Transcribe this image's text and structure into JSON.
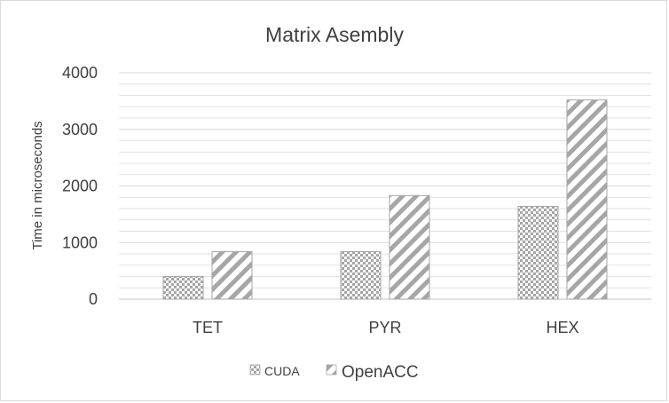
{
  "chart_data": {
    "type": "bar",
    "title": "Matrix Asembly",
    "xlabel": "",
    "ylabel": "Time in microseconds",
    "categories": [
      "TET",
      "PYR",
      "HEX"
    ],
    "series": [
      {
        "name": "CUDA",
        "values": [
          400,
          840,
          1640
        ],
        "pattern": "checker"
      },
      {
        "name": "OpenACC",
        "values": [
          840,
          1830,
          3520
        ],
        "pattern": "diagonal"
      }
    ],
    "ylim": [
      0,
      4000
    ],
    "yticks": [
      0,
      1000,
      2000,
      3000,
      4000
    ],
    "minor_gridlines_every": 200,
    "grid": true,
    "legend_position": "bottom",
    "colors": {
      "bar_stroke": "#a6a6a6",
      "pattern": "#a6a6a6",
      "grid": "#d9d9d9",
      "text": "#404040"
    }
  }
}
